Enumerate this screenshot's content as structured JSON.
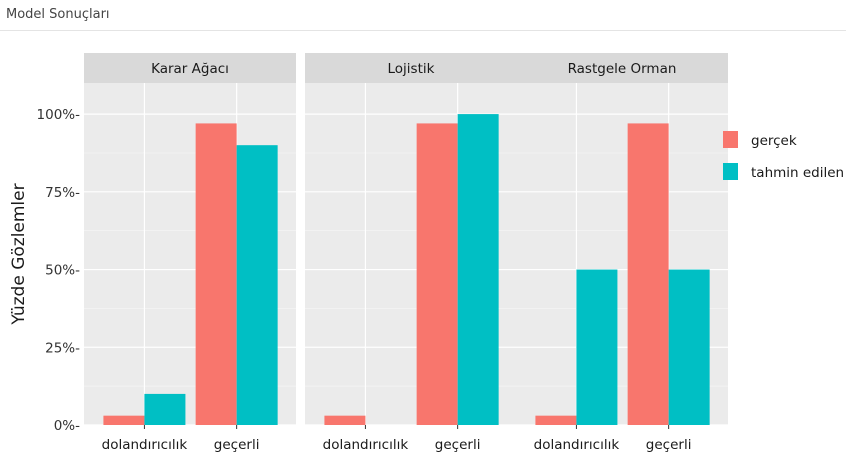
{
  "window": {
    "title": "Model Sonuçları"
  },
  "colors": {
    "actual": "#F8766D",
    "predicted": "#00BFC4",
    "panel_bg": "#EBEBEB",
    "strip_bg": "#D9D9D9",
    "grid": "#FFFFFF",
    "text": "#1A1A1A"
  },
  "chart_data": {
    "type": "bar",
    "ylabel": "Yüzde Gözlemler",
    "ylim": [
      0,
      1.1
    ],
    "yticks": [
      0,
      0.25,
      0.5,
      0.75,
      1.0
    ],
    "ytick_labels": [
      "0%-",
      "25%-",
      "50%-",
      "75%-",
      "100%-"
    ],
    "categories": [
      "dolandırıcılık",
      "geçerli"
    ],
    "legend_position": "right",
    "legend": [
      {
        "key": "actual",
        "label": "gerçek"
      },
      {
        "key": "predicted",
        "label": "tahmin edilen"
      }
    ],
    "panels": [
      {
        "title": "Karar Ağacı",
        "series": [
          {
            "key": "actual",
            "values": [
              0.03,
              0.97
            ]
          },
          {
            "key": "predicted",
            "values": [
              0.1,
              0.9
            ]
          }
        ]
      },
      {
        "title": "Lojistik",
        "series": [
          {
            "key": "actual",
            "values": [
              0.03,
              0.97
            ]
          },
          {
            "key": "predicted",
            "values": [
              0.0,
              1.0
            ]
          }
        ]
      },
      {
        "title": "Rastgele Orman",
        "series": [
          {
            "key": "actual",
            "values": [
              0.03,
              0.97
            ]
          },
          {
            "key": "predicted",
            "values": [
              0.5,
              0.5
            ]
          }
        ]
      }
    ]
  }
}
